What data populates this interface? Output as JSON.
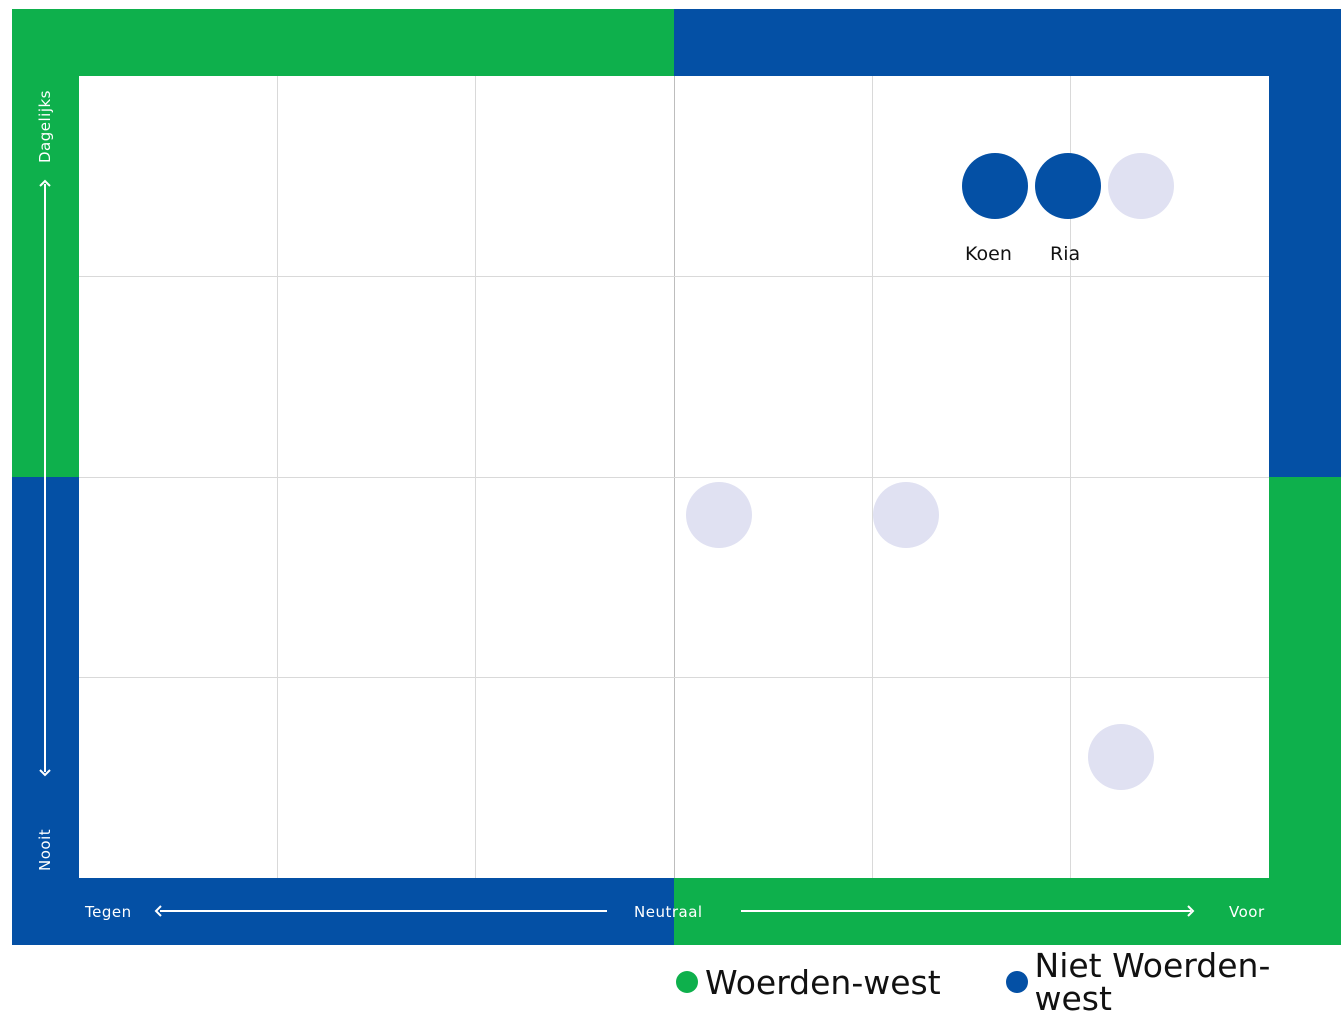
{
  "colors": {
    "green": "#0eb04c",
    "blue": "#0450a5",
    "empty_dot": "#e0e1f2",
    "grid": "#d9d9d9"
  },
  "axes": {
    "x_left": "Tegen",
    "x_center": "Neutraal",
    "x_right": "Voor",
    "y_top": "Dagelijks",
    "y_bottom": "Nooit"
  },
  "people": [
    {
      "name": "Koen",
      "group": "Niet Woerden-west"
    },
    {
      "name": "Ria",
      "group": "Niet Woerden-west"
    }
  ],
  "empty_markers": 4,
  "legend": {
    "items": [
      {
        "label": "Woerden-west",
        "color": "#0eb04c"
      },
      {
        "label": "Niet Woerden-west",
        "color": "#0450a5"
      }
    ]
  }
}
